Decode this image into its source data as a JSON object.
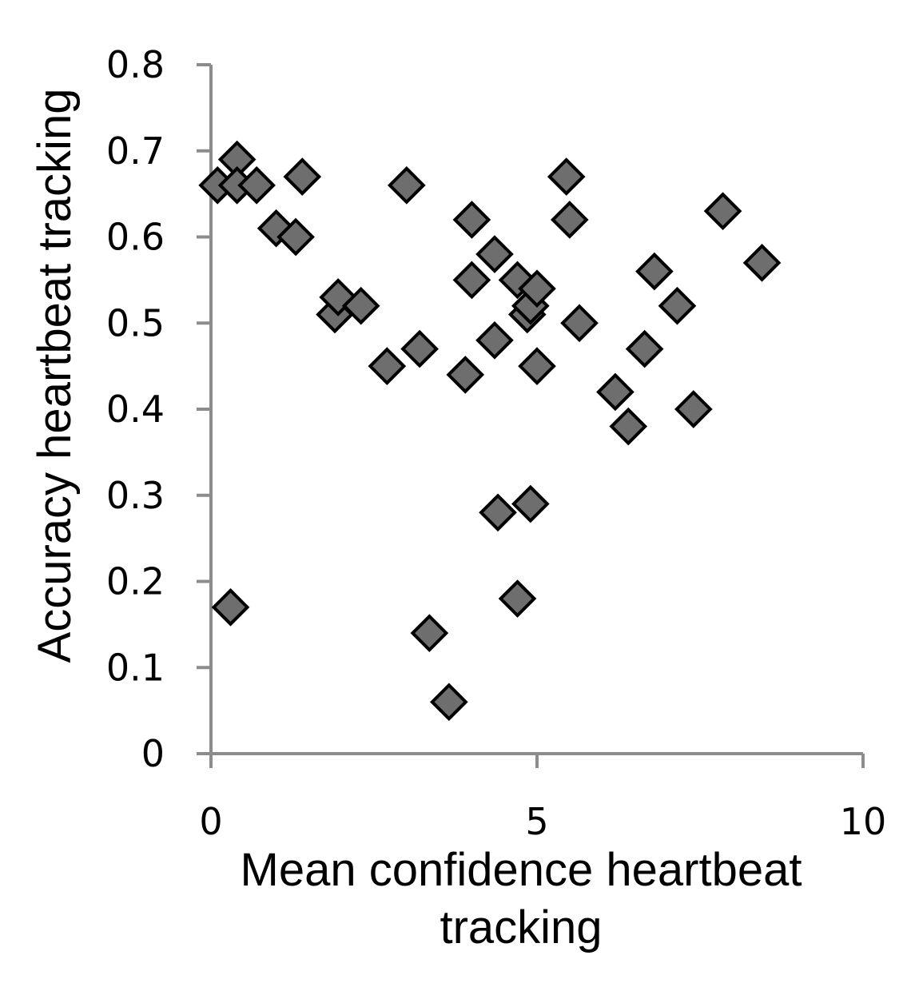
{
  "chart_data": {
    "type": "scatter",
    "xlabel": "Mean confidence heartbeat tracking",
    "ylabel": "Accuracy heartbeat tracking",
    "xlim": [
      0,
      10
    ],
    "ylim": [
      0,
      0.8
    ],
    "xticks": [
      0,
      5,
      10
    ],
    "xtick_labels": [
      "0",
      "5",
      "10"
    ],
    "yticks": [
      0,
      0.1,
      0.2,
      0.3,
      0.4,
      0.5,
      0.6,
      0.7,
      0.8
    ],
    "ytick_labels": [
      "0",
      "0.1",
      "0.2",
      "0.3",
      "0.4",
      "0.5",
      "0.6",
      "0.7",
      "0.8"
    ],
    "grid": false,
    "legend": "none",
    "marker": "diamond",
    "marker_color": "#6e6e6e",
    "marker_edge_color": "#000000",
    "axis_color": "#8c8c8c",
    "points": [
      {
        "x": 0.1,
        "y": 0.66
      },
      {
        "x": 0.4,
        "y": 0.69
      },
      {
        "x": 0.4,
        "y": 0.66
      },
      {
        "x": 0.7,
        "y": 0.66
      },
      {
        "x": 0.3,
        "y": 0.17
      },
      {
        "x": 1.0,
        "y": 0.61
      },
      {
        "x": 1.3,
        "y": 0.6
      },
      {
        "x": 1.4,
        "y": 0.67
      },
      {
        "x": 1.9,
        "y": 0.51
      },
      {
        "x": 1.95,
        "y": 0.53
      },
      {
        "x": 2.3,
        "y": 0.52
      },
      {
        "x": 2.7,
        "y": 0.45
      },
      {
        "x": 3.0,
        "y": 0.66
      },
      {
        "x": 3.2,
        "y": 0.47
      },
      {
        "x": 3.35,
        "y": 0.14
      },
      {
        "x": 3.65,
        "y": 0.06
      },
      {
        "x": 3.9,
        "y": 0.44
      },
      {
        "x": 4.0,
        "y": 0.62
      },
      {
        "x": 4.0,
        "y": 0.55
      },
      {
        "x": 4.35,
        "y": 0.58
      },
      {
        "x": 4.35,
        "y": 0.48
      },
      {
        "x": 4.4,
        "y": 0.28
      },
      {
        "x": 4.7,
        "y": 0.55
      },
      {
        "x": 4.7,
        "y": 0.18
      },
      {
        "x": 4.85,
        "y": 0.51
      },
      {
        "x": 4.9,
        "y": 0.52
      },
      {
        "x": 4.9,
        "y": 0.29
      },
      {
        "x": 5.0,
        "y": 0.54
      },
      {
        "x": 5.0,
        "y": 0.45
      },
      {
        "x": 5.45,
        "y": 0.67
      },
      {
        "x": 5.5,
        "y": 0.62
      },
      {
        "x": 5.65,
        "y": 0.5
      },
      {
        "x": 6.2,
        "y": 0.42
      },
      {
        "x": 6.4,
        "y": 0.38
      },
      {
        "x": 6.65,
        "y": 0.47
      },
      {
        "x": 6.8,
        "y": 0.56
      },
      {
        "x": 7.15,
        "y": 0.52
      },
      {
        "x": 7.4,
        "y": 0.4
      },
      {
        "x": 7.85,
        "y": 0.63
      },
      {
        "x": 8.45,
        "y": 0.57
      }
    ]
  }
}
